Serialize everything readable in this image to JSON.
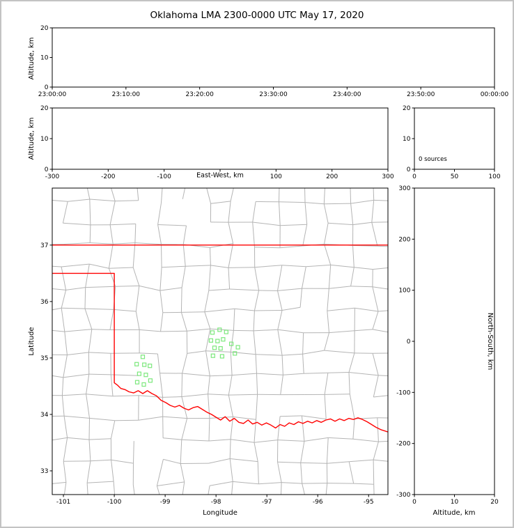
{
  "title": "Oklahoma LMA 2300-0000 UTC May 17, 2020",
  "colors": {
    "state_border": "#ff0000",
    "county_line": "#b4b4b4",
    "station_marker": "#7ce87c",
    "frame": "#000000",
    "background": "#ffffff",
    "page_border": "#c3c3c3"
  },
  "chart_data": [
    {
      "id": "time-height",
      "type": "scatter",
      "xlabel": "",
      "ylabel": "Altitude, km",
      "xlim": [
        0,
        6
      ],
      "ylim": [
        0,
        20
      ],
      "xticks": [
        0,
        1,
        2,
        3,
        4,
        5,
        6
      ],
      "xtick_labels": [
        "23:00:00",
        "23:10:00",
        "23:20:00",
        "23:30:00",
        "23:40:00",
        "23:50:00",
        "00:00:00"
      ],
      "yticks": [
        0,
        10,
        20
      ],
      "ytick_labels": [
        "0",
        "10",
        "20"
      ],
      "points": []
    },
    {
      "id": "ew-height",
      "type": "scatter",
      "xlabel": "East-West, km",
      "ylabel": "Altitude, km",
      "xlim": [
        -300,
        300
      ],
      "ylim": [
        0,
        20
      ],
      "xticks": [
        -300,
        -200,
        -100,
        0,
        100,
        200,
        300
      ],
      "xtick_labels": [
        "-300",
        "-200",
        "-100",
        "",
        "100",
        "200",
        "300"
      ],
      "yticks": [
        0,
        10,
        20
      ],
      "ytick_labels": [
        "0",
        "10",
        "20"
      ],
      "points": []
    },
    {
      "id": "alt-histogram",
      "type": "line",
      "xlabel": "",
      "ylabel": "",
      "annotation": "0 sources",
      "xlim": [
        0,
        100
      ],
      "ylim": [
        0,
        20
      ],
      "xticks": [
        0,
        50,
        100
      ],
      "xtick_labels": [
        "0",
        "50",
        "100"
      ],
      "yticks": [
        0,
        10,
        20
      ],
      "ytick_labels": [
        "20",
        "10",
        "0"
      ],
      "ytick_values_note": "labels shown top-to-bottom: 20,10,0",
      "points": []
    },
    {
      "id": "plan-view",
      "type": "scatter",
      "xlabel": "Longitude",
      "ylabel": "Latitude",
      "xlim": [
        -101.22,
        -94.62
      ],
      "ylim": [
        32.58,
        38.01
      ],
      "xticks": [
        -101,
        -100,
        -99,
        -98,
        -97,
        -96,
        -95
      ],
      "xtick_labels": [
        "-101",
        "-100",
        "-99",
        "-98",
        "-97",
        "-96",
        "-95"
      ],
      "yticks": [
        33,
        34,
        35,
        36,
        37
      ],
      "ytick_labels": [
        "33",
        "34",
        "35",
        "36",
        "37"
      ],
      "station_markers": [
        [
          -99.44,
          35.02
        ],
        [
          -99.56,
          34.89
        ],
        [
          -99.41,
          34.88
        ],
        [
          -99.3,
          34.86
        ],
        [
          -99.51,
          34.72
        ],
        [
          -99.38,
          34.7
        ],
        [
          -99.55,
          34.57
        ],
        [
          -99.42,
          34.53
        ],
        [
          -99.29,
          34.6
        ],
        [
          -98.07,
          35.45
        ],
        [
          -97.93,
          35.5
        ],
        [
          -97.8,
          35.46
        ],
        [
          -98.1,
          35.31
        ],
        [
          -97.97,
          35.3
        ],
        [
          -97.86,
          35.33
        ],
        [
          -98.03,
          35.18
        ],
        [
          -97.91,
          35.17
        ],
        [
          -98.06,
          35.04
        ],
        [
          -97.88,
          35.03
        ],
        [
          -97.7,
          35.25
        ],
        [
          -97.57,
          35.19
        ],
        [
          -97.63,
          35.08
        ]
      ],
      "state_border": {
        "north": [
          [
            -101.22,
            37.0
          ],
          [
            -94.62,
            37.0
          ]
        ],
        "main": [
          [
            -101.22,
            36.5
          ],
          [
            -100.0,
            36.5
          ],
          [
            -100.0,
            34.56
          ],
          [
            -99.94,
            34.52
          ],
          [
            -99.87,
            34.46
          ],
          [
            -99.79,
            34.44
          ],
          [
            -99.71,
            34.4
          ],
          [
            -99.62,
            34.38
          ],
          [
            -99.53,
            34.42
          ],
          [
            -99.44,
            34.37
          ],
          [
            -99.35,
            34.42
          ],
          [
            -99.26,
            34.37
          ],
          [
            -99.17,
            34.33
          ],
          [
            -99.08,
            34.25
          ],
          [
            -98.99,
            34.21
          ],
          [
            -98.9,
            34.16
          ],
          [
            -98.81,
            34.13
          ],
          [
            -98.72,
            34.16
          ],
          [
            -98.63,
            34.11
          ],
          [
            -98.54,
            34.08
          ],
          [
            -98.45,
            34.12
          ],
          [
            -98.36,
            34.14
          ],
          [
            -98.27,
            34.09
          ],
          [
            -98.18,
            34.04
          ],
          [
            -98.09,
            34.0
          ],
          [
            -98.0,
            33.95
          ],
          [
            -97.91,
            33.9
          ],
          [
            -97.82,
            33.96
          ],
          [
            -97.73,
            33.88
          ],
          [
            -97.64,
            33.93
          ],
          [
            -97.55,
            33.86
          ],
          [
            -97.46,
            33.84
          ],
          [
            -97.37,
            33.9
          ],
          [
            -97.28,
            33.83
          ],
          [
            -97.19,
            33.86
          ],
          [
            -97.1,
            33.81
          ],
          [
            -97.01,
            33.85
          ],
          [
            -96.92,
            33.81
          ],
          [
            -96.83,
            33.76
          ],
          [
            -96.74,
            33.82
          ],
          [
            -96.65,
            33.79
          ],
          [
            -96.56,
            33.85
          ],
          [
            -96.47,
            33.82
          ],
          [
            -96.38,
            33.87
          ],
          [
            -96.29,
            33.84
          ],
          [
            -96.2,
            33.88
          ],
          [
            -96.11,
            33.85
          ],
          [
            -96.02,
            33.89
          ],
          [
            -95.93,
            33.86
          ],
          [
            -95.84,
            33.9
          ],
          [
            -95.75,
            33.92
          ],
          [
            -95.66,
            33.88
          ],
          [
            -95.57,
            33.92
          ],
          [
            -95.48,
            33.89
          ],
          [
            -95.39,
            33.93
          ],
          [
            -95.3,
            33.91
          ],
          [
            -95.21,
            33.94
          ],
          [
            -95.12,
            33.91
          ],
          [
            -95.03,
            33.87
          ],
          [
            -94.94,
            33.82
          ],
          [
            -94.85,
            33.77
          ],
          [
            -94.76,
            33.73
          ],
          [
            -94.62,
            33.69
          ]
        ]
      }
    },
    {
      "id": "ns-height",
      "type": "scatter",
      "xlabel": "Altitude, km",
      "ylabel": "North-South, km",
      "xlim": [
        0,
        20
      ],
      "ylim": [
        -300,
        300
      ],
      "xticks": [
        0,
        10,
        20
      ],
      "xtick_labels": [
        "0",
        "10",
        "20"
      ],
      "yticks": [
        300,
        200,
        100,
        0,
        -100,
        -200,
        -300
      ],
      "ytick_labels": [
        "300",
        "200",
        "100",
        "0",
        "-100",
        "-200",
        "-300"
      ],
      "points": []
    }
  ]
}
